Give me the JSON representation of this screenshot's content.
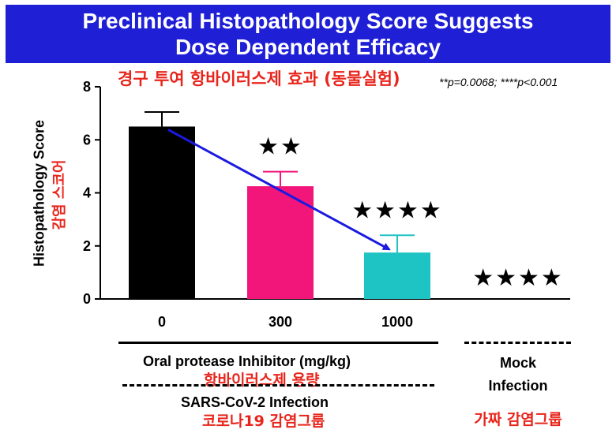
{
  "title": {
    "line1": "Preclinical Histopathology Score Suggests",
    "line2": "Dose Dependent Efficacy"
  },
  "korean_subtitle": "경구 투여 항바이러스제 효과 (동물실험)",
  "pvalue_note": "**p=0.0068;    ****p<0.001",
  "chart_data": {
    "type": "bar",
    "categories": [
      "0",
      "300",
      "1000",
      ""
    ],
    "values": [
      6.5,
      4.25,
      1.75,
      0
    ],
    "errors": [
      0.55,
      0.55,
      0.65,
      0
    ],
    "significance": [
      "",
      "★★",
      "★★★★",
      "★★★★"
    ],
    "colors": [
      "#000000",
      "#f2157a",
      "#1ec3c3",
      "#ffffff"
    ],
    "ylim": [
      0,
      8
    ],
    "yticks": [
      "0",
      "2",
      "4",
      "6",
      "8"
    ],
    "ylabel": "Histopathology Score",
    "ylabel_ko": "감염 스코어",
    "trend_arrow": {
      "from_category": 0,
      "to_category": 2,
      "color": "#1a1ae0"
    }
  },
  "xaxis_groups": {
    "inhibitor_label": "Oral protease Inhibitor (mg/kg)",
    "inhibitor_label_ko": "항바이러스제 용량",
    "infection_label": "SARS-CoV-2 Infection",
    "infection_label_ko": "코로나19 감염그룹",
    "mock_line1": "Mock",
    "mock_line2": "Infection",
    "mock_label_ko": "가짜 감염그룹"
  }
}
